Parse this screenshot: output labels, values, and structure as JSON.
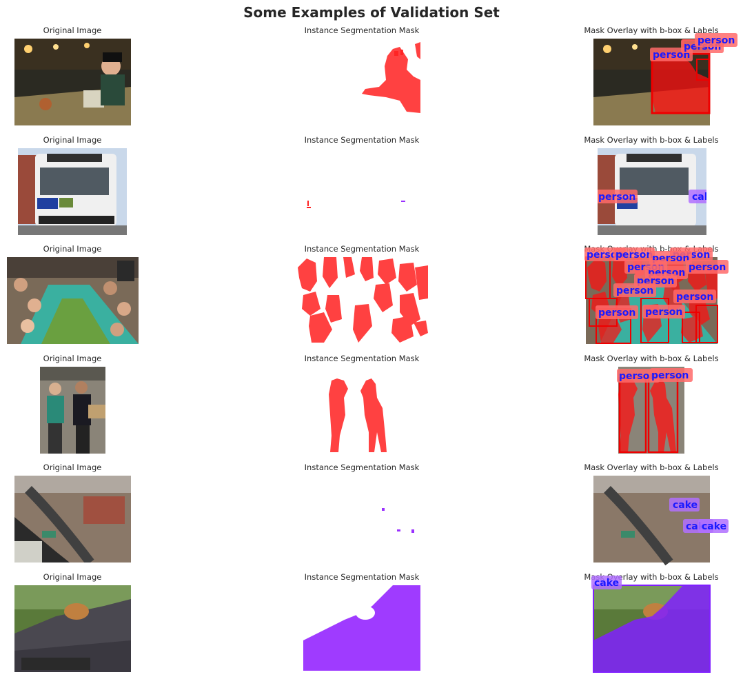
{
  "figure": {
    "title": "Some Examples of Validation Set"
  },
  "colors": {
    "person": "#ff2020",
    "cake": "#9a30ff",
    "label_text": "#1a1aff"
  },
  "column_titles": {
    "original": "Original Image",
    "mask": "Instance Segmentation Mask",
    "overlay": "Mask Overlay with b-box & Labels"
  },
  "rows": [
    {
      "scene": "restaurant-woman",
      "labels": [
        "person",
        "person",
        "person"
      ]
    },
    {
      "scene": "city-bus",
      "labels": [
        "person",
        "cake"
      ]
    },
    {
      "scene": "children-party",
      "labels": [
        "person",
        "person",
        "person",
        "person",
        "person",
        "person",
        "person",
        "person",
        "person",
        "person",
        "person",
        "person",
        "person"
      ]
    },
    {
      "scene": "two-people",
      "labels": [
        "person",
        "person"
      ]
    },
    {
      "scene": "train-tracks",
      "labels": [
        "cake",
        "cake",
        "cake"
      ]
    },
    {
      "scene": "cat-on-car",
      "labels": [
        "cake"
      ]
    }
  ]
}
